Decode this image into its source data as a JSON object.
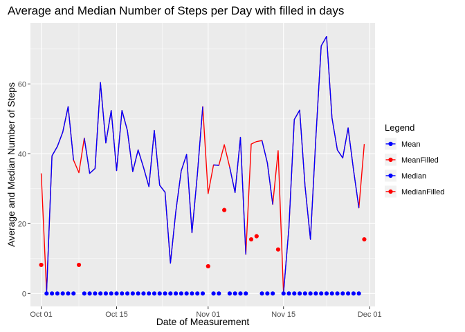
{
  "chart_data": {
    "type": "line",
    "title": "Average and Median Number of Steps per Day with filled in days",
    "xlabel": "Date of Measurement",
    "ylabel": "Average and Median Number of Steps",
    "x_ticks": [
      "Oct 01",
      "Oct 15",
      "Nov 01",
      "Nov 15",
      "Dec 01"
    ],
    "y_ticks": [
      "0",
      "20",
      "40",
      "60"
    ],
    "xlim": [
      "2012-09-29",
      "2012-12-02"
    ],
    "ylim": [
      -3.7,
      77.5
    ],
    "grid": true,
    "legend_position": "right",
    "legend": {
      "title": "Legend",
      "entries": [
        {
          "label": "Mean",
          "color": "#0000ff"
        },
        {
          "label": "MeanFilled",
          "color": "#ff0000"
        },
        {
          "label": "Median",
          "color": "#0000ff"
        },
        {
          "label": "MedianFilled",
          "color": "#ff0000"
        }
      ]
    },
    "series": [
      {
        "name": "MeanFilled",
        "kind": "line",
        "color": "#ff0000",
        "x": [
          "2012-10-01",
          "2012-10-02",
          "2012-10-03",
          "2012-10-04",
          "2012-10-05",
          "2012-10-06",
          "2012-10-07",
          "2012-10-08",
          "2012-10-09",
          "2012-10-10",
          "2012-10-11",
          "2012-10-12",
          "2012-10-13",
          "2012-10-14",
          "2012-10-15",
          "2012-10-16",
          "2012-10-17",
          "2012-10-18",
          "2012-10-19",
          "2012-10-20",
          "2012-10-21",
          "2012-10-22",
          "2012-10-23",
          "2012-10-24",
          "2012-10-25",
          "2012-10-26",
          "2012-10-27",
          "2012-10-28",
          "2012-10-29",
          "2012-10-30",
          "2012-10-31",
          "2012-11-01",
          "2012-11-02",
          "2012-11-03",
          "2012-11-04",
          "2012-11-05",
          "2012-11-06",
          "2012-11-07",
          "2012-11-08",
          "2012-11-09",
          "2012-11-10",
          "2012-11-11",
          "2012-11-12",
          "2012-11-13",
          "2012-11-14",
          "2012-11-15",
          "2012-11-16",
          "2012-11-17",
          "2012-11-18",
          "2012-11-19",
          "2012-11-20",
          "2012-11-21",
          "2012-11-22",
          "2012-11-23",
          "2012-11-24",
          "2012-11-25",
          "2012-11-26",
          "2012-11-27",
          "2012-11-28",
          "2012-11-29",
          "2012-11-30"
        ],
        "values": [
          34.4,
          0.4,
          39.4,
          42.1,
          46.2,
          53.5,
          38.2,
          34.6,
          44.5,
          34.4,
          35.8,
          60.4,
          43.1,
          52.4,
          35.2,
          52.4,
          46.7,
          34.9,
          41.1,
          36.1,
          30.6,
          46.7,
          31.0,
          29.0,
          8.7,
          23.5,
          35.1,
          39.8,
          17.4,
          34.1,
          53.5,
          28.6,
          36.8,
          36.7,
          42.6,
          36.2,
          28.9,
          44.7,
          11.2,
          42.8,
          43.5,
          43.8,
          37.4,
          25.5,
          40.9,
          0.1,
          18.8,
          49.8,
          52.5,
          30.7,
          15.5,
          44.4,
          70.9,
          73.6,
          50.3,
          41.1,
          38.8,
          47.4,
          35.4,
          24.5,
          42.8
        ]
      },
      {
        "name": "Mean",
        "kind": "line",
        "color": "#0000ff",
        "segments": [
          {
            "x": [
              "2012-10-02",
              "2012-10-03",
              "2012-10-04",
              "2012-10-05",
              "2012-10-06",
              "2012-10-07"
            ],
            "values": [
              0.4,
              39.4,
              42.1,
              46.2,
              53.5,
              38.2
            ]
          },
          {
            "x": [
              "2012-10-09",
              "2012-10-10",
              "2012-10-11",
              "2012-10-12",
              "2012-10-13",
              "2012-10-14",
              "2012-10-15",
              "2012-10-16",
              "2012-10-17",
              "2012-10-18",
              "2012-10-19",
              "2012-10-20",
              "2012-10-21",
              "2012-10-22",
              "2012-10-23",
              "2012-10-24",
              "2012-10-25",
              "2012-10-26",
              "2012-10-27",
              "2012-10-28",
              "2012-10-29",
              "2012-10-30",
              "2012-10-31"
            ],
            "values": [
              44.5,
              34.4,
              35.8,
              60.4,
              43.1,
              52.4,
              35.2,
              52.4,
              46.7,
              34.9,
              41.1,
              36.1,
              30.6,
              46.7,
              31.0,
              29.0,
              8.7,
              23.5,
              35.1,
              39.8,
              17.4,
              34.1,
              53.5
            ]
          },
          {
            "x": [
              "2012-11-02",
              "2012-11-03"
            ],
            "values": [
              36.8,
              36.7
            ]
          },
          {
            "x": [
              "2012-11-05",
              "2012-11-06",
              "2012-11-07",
              "2012-11-08"
            ],
            "values": [
              36.2,
              28.9,
              44.7,
              11.2
            ]
          },
          {
            "x": [
              "2012-11-11",
              "2012-11-12",
              "2012-11-13"
            ],
            "values": [
              43.8,
              37.4,
              25.5
            ]
          },
          {
            "x": [
              "2012-11-15",
              "2012-11-16",
              "2012-11-17",
              "2012-11-18",
              "2012-11-19",
              "2012-11-20",
              "2012-11-21",
              "2012-11-22",
              "2012-11-23",
              "2012-11-24",
              "2012-11-25",
              "2012-11-26",
              "2012-11-27",
              "2012-11-28",
              "2012-11-29"
            ],
            "values": [
              0.1,
              18.8,
              49.8,
              52.5,
              30.7,
              15.5,
              44.4,
              70.9,
              73.6,
              50.3,
              41.1,
              38.8,
              47.4,
              35.4,
              24.5
            ]
          }
        ]
      },
      {
        "name": "MedianFilled",
        "kind": "points",
        "color": "#ff0000",
        "x": [
          "2012-10-01",
          "2012-10-08",
          "2012-11-01",
          "2012-11-04",
          "2012-11-09",
          "2012-11-10",
          "2012-11-14",
          "2012-11-30"
        ],
        "values": [
          8.2,
          8.2,
          7.8,
          23.9,
          15.5,
          16.4,
          12.6,
          15.5
        ]
      },
      {
        "name": "Median",
        "kind": "points",
        "color": "#0000ff",
        "x": [
          "2012-10-02",
          "2012-10-03",
          "2012-10-04",
          "2012-10-05",
          "2012-10-06",
          "2012-10-07",
          "2012-10-09",
          "2012-10-10",
          "2012-10-11",
          "2012-10-12",
          "2012-10-13",
          "2012-10-14",
          "2012-10-15",
          "2012-10-16",
          "2012-10-17",
          "2012-10-18",
          "2012-10-19",
          "2012-10-20",
          "2012-10-21",
          "2012-10-22",
          "2012-10-23",
          "2012-10-24",
          "2012-10-25",
          "2012-10-26",
          "2012-10-27",
          "2012-10-28",
          "2012-10-29",
          "2012-10-30",
          "2012-10-31",
          "2012-11-02",
          "2012-11-03",
          "2012-11-05",
          "2012-11-06",
          "2012-11-07",
          "2012-11-08",
          "2012-11-11",
          "2012-11-12",
          "2012-11-13",
          "2012-11-15",
          "2012-11-16",
          "2012-11-17",
          "2012-11-18",
          "2012-11-19",
          "2012-11-20",
          "2012-11-21",
          "2012-11-22",
          "2012-11-23",
          "2012-11-24",
          "2012-11-25",
          "2012-11-26",
          "2012-11-27",
          "2012-11-28",
          "2012-11-29"
        ],
        "values": [
          0,
          0,
          0,
          0,
          0,
          0,
          0,
          0,
          0,
          0,
          0,
          0,
          0,
          0,
          0,
          0,
          0,
          0,
          0,
          0,
          0,
          0,
          0,
          0,
          0,
          0,
          0,
          0,
          0,
          0,
          0,
          0,
          0,
          0,
          0,
          0,
          0,
          0,
          0,
          0,
          0,
          0,
          0,
          0,
          0,
          0,
          0,
          0,
          0,
          0,
          0,
          0,
          0
        ]
      }
    ]
  }
}
